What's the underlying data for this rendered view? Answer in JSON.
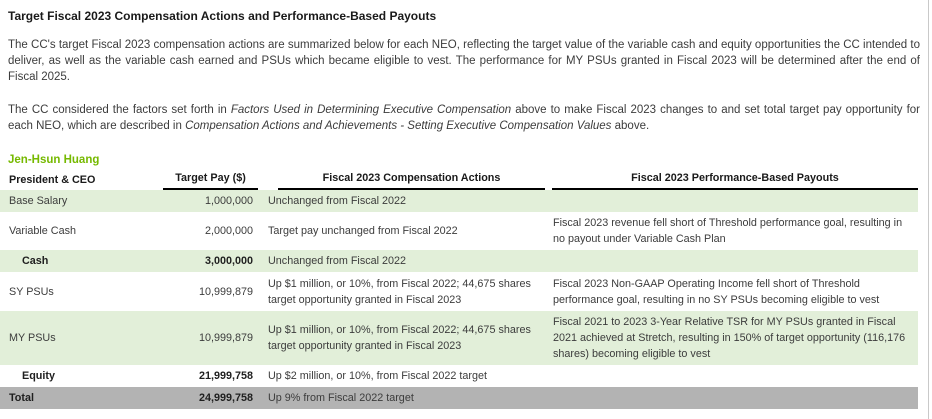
{
  "page": {
    "title": "Target Fiscal 2023 Compensation Actions and Performance-Based Payouts",
    "paragraph1": "The CC's target Fiscal 2023 compensation actions are summarized below for each NEO, reflecting the target value of the variable cash and equity opportunities the CC intended to deliver, as well as the variable cash earned and PSUs which became eligible to vest. The performance for MY PSUs granted in Fiscal 2023 will be determined after the end of Fiscal 2025.",
    "paragraph2": {
      "part1": "The CC considered the factors set forth in ",
      "italic1": "Factors Used in Determining Executive Compensation",
      "part2": " above to make Fiscal 2023 changes to and set total target pay opportunity for each NEO, which are described in ",
      "italic2": "Compensation Actions and Achievements - Setting Executive Compensation Values",
      "part3": " above."
    },
    "officer_name": "Jen-Hsun Huang"
  },
  "table": {
    "headers": {
      "col1": "President & CEO",
      "col2": "Target Pay ($)",
      "col3": "Fiscal 2023 Compensation Actions",
      "col4": "Fiscal 2023 Performance-Based Payouts"
    },
    "rows": [
      {
        "label": "Base Salary",
        "target_pay": "1,000,000",
        "actions": "Unchanged from Fiscal 2022",
        "payouts": ""
      },
      {
        "label": "Variable Cash",
        "target_pay": "2,000,000",
        "actions": "Target pay unchanged from Fiscal 2022",
        "payouts": "Fiscal 2023 revenue fell short of Threshold performance goal, resulting in no payout under Variable Cash Plan"
      },
      {
        "label": "Cash",
        "target_pay": "3,000,000",
        "actions": "Unchanged from Fiscal 2022",
        "payouts": ""
      },
      {
        "label": "SY PSUs",
        "target_pay": "10,999,879",
        "actions": "Up $1 million, or 10%, from Fiscal 2022; 44,675 shares target opportunity granted in Fiscal 2023",
        "payouts": "Fiscal 2023 Non-GAAP Operating Income fell short of Threshold performance goal, resulting in no SY PSUs becoming eligible to vest"
      },
      {
        "label": "MY PSUs",
        "target_pay": "10,999,879",
        "actions": "Up $1 million, or 10%, from Fiscal 2022; 44,675 shares target opportunity granted in Fiscal 2023",
        "payouts": "Fiscal 2021 to 2023 3-Year Relative TSR for MY PSUs granted in Fiscal 2021 achieved at Stretch, resulting in 150% of target opportunity (116,176 shares) becoming eligible to vest"
      },
      {
        "label": "Equity",
        "target_pay": "21,999,758",
        "actions": "Up $2 million, or 10%, from Fiscal 2022 target",
        "payouts": ""
      },
      {
        "label": "Total",
        "target_pay": "24,999,758",
        "actions": "Up 9% from Fiscal 2022 target",
        "payouts": ""
      }
    ]
  },
  "colors": {
    "accent_green": "#76b900",
    "row_green": "#e2efd9",
    "row_gray": "#b3b3b3"
  }
}
